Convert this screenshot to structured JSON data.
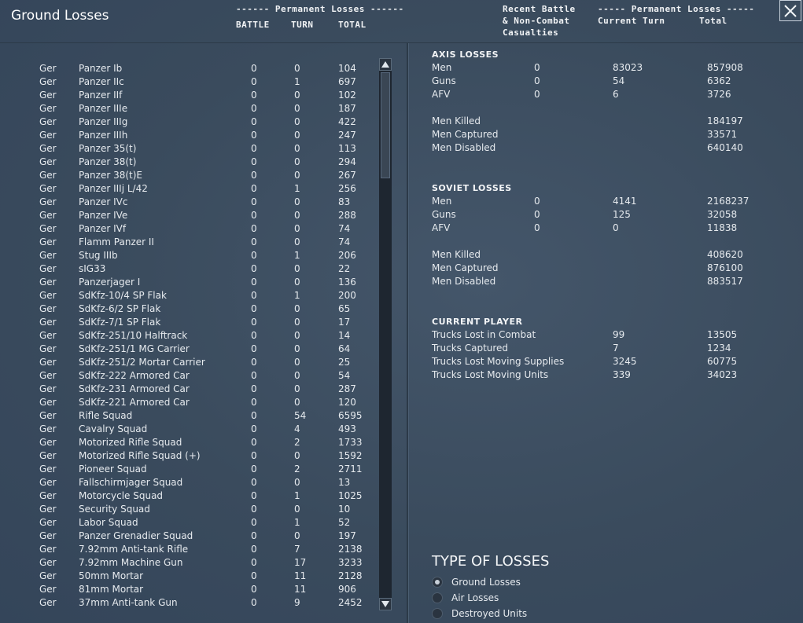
{
  "title": "Ground Losses",
  "left_headers": {
    "group": "------ Permanent Losses ------",
    "battle": "BATTLE",
    "turn": "TURN",
    "total": "TOTAL"
  },
  "right_headers": {
    "recent_1": "Recent Battle",
    "recent_2": "& Non-Combat",
    "recent_3": "Casualties",
    "group": "----- Permanent Losses -----",
    "current_turn": "Current Turn",
    "total": "Total"
  },
  "ground_losses": [
    {
      "nat": "Ger",
      "name": "Panzer Ib",
      "battle": "0",
      "turn": "0",
      "total": "104"
    },
    {
      "nat": "Ger",
      "name": "Panzer IIc",
      "battle": "0",
      "turn": "1",
      "total": "697"
    },
    {
      "nat": "Ger",
      "name": "Panzer IIf",
      "battle": "0",
      "turn": "0",
      "total": "102"
    },
    {
      "nat": "Ger",
      "name": "Panzer IIIe",
      "battle": "0",
      "turn": "0",
      "total": "187"
    },
    {
      "nat": "Ger",
      "name": "Panzer IIIg",
      "battle": "0",
      "turn": "0",
      "total": "422"
    },
    {
      "nat": "Ger",
      "name": "Panzer IIIh",
      "battle": "0",
      "turn": "0",
      "total": "247"
    },
    {
      "nat": "Ger",
      "name": "Panzer 35(t)",
      "battle": "0",
      "turn": "0",
      "total": "113"
    },
    {
      "nat": "Ger",
      "name": "Panzer 38(t)",
      "battle": "0",
      "turn": "0",
      "total": "294"
    },
    {
      "nat": "Ger",
      "name": "Panzer 38(t)E",
      "battle": "0",
      "turn": "0",
      "total": "267"
    },
    {
      "nat": "Ger",
      "name": "Panzer IIIj L/42",
      "battle": "0",
      "turn": "1",
      "total": "256"
    },
    {
      "nat": "Ger",
      "name": "Panzer IVc",
      "battle": "0",
      "turn": "0",
      "total": "83"
    },
    {
      "nat": "Ger",
      "name": "Panzer IVe",
      "battle": "0",
      "turn": "0",
      "total": "288"
    },
    {
      "nat": "Ger",
      "name": "Panzer IVf",
      "battle": "0",
      "turn": "0",
      "total": "74"
    },
    {
      "nat": "Ger",
      "name": "Flamm Panzer II",
      "battle": "0",
      "turn": "0",
      "total": "74"
    },
    {
      "nat": "Ger",
      "name": "Stug IIIb",
      "battle": "0",
      "turn": "1",
      "total": "206"
    },
    {
      "nat": "Ger",
      "name": "sIG33",
      "battle": "0",
      "turn": "0",
      "total": "22"
    },
    {
      "nat": "Ger",
      "name": "Panzerjager I",
      "battle": "0",
      "turn": "0",
      "total": "136"
    },
    {
      "nat": "Ger",
      "name": "SdKfz-10/4 SP Flak",
      "battle": "0",
      "turn": "1",
      "total": "200"
    },
    {
      "nat": "Ger",
      "name": "SdKfz-6/2 SP Flak",
      "battle": "0",
      "turn": "0",
      "total": "65"
    },
    {
      "nat": "Ger",
      "name": "SdKfz-7/1 SP Flak",
      "battle": "0",
      "turn": "0",
      "total": "17"
    },
    {
      "nat": "Ger",
      "name": "SdKfz-251/10 Halftrack",
      "battle": "0",
      "turn": "0",
      "total": "14"
    },
    {
      "nat": "Ger",
      "name": "SdKfz-251/1 MG Carrier",
      "battle": "0",
      "turn": "0",
      "total": "64"
    },
    {
      "nat": "Ger",
      "name": "SdKfz-251/2 Mortar Carrier",
      "battle": "0",
      "turn": "0",
      "total": "25"
    },
    {
      "nat": "Ger",
      "name": "SdKfz-222 Armored Car",
      "battle": "0",
      "turn": "0",
      "total": "54"
    },
    {
      "nat": "Ger",
      "name": "SdKfz-231 Armored Car",
      "battle": "0",
      "turn": "0",
      "total": "287"
    },
    {
      "nat": "Ger",
      "name": "SdKfz-221 Armored Car",
      "battle": "0",
      "turn": "0",
      "total": "120"
    },
    {
      "nat": "Ger",
      "name": "Rifle Squad",
      "battle": "0",
      "turn": "54",
      "total": "6595"
    },
    {
      "nat": "Ger",
      "name": "Cavalry Squad",
      "battle": "0",
      "turn": "4",
      "total": "493"
    },
    {
      "nat": "Ger",
      "name": "Motorized Rifle Squad",
      "battle": "0",
      "turn": "2",
      "total": "1733"
    },
    {
      "nat": "Ger",
      "name": "Motorized Rifle Squad (+)",
      "battle": "0",
      "turn": "0",
      "total": "1592"
    },
    {
      "nat": "Ger",
      "name": "Pioneer Squad",
      "battle": "0",
      "turn": "2",
      "total": "2711"
    },
    {
      "nat": "Ger",
      "name": "Fallschirmjager Squad",
      "battle": "0",
      "turn": "0",
      "total": "13"
    },
    {
      "nat": "Ger",
      "name": "Motorcycle Squad",
      "battle": "0",
      "turn": "1",
      "total": "1025"
    },
    {
      "nat": "Ger",
      "name": "Security Squad",
      "battle": "0",
      "turn": "0",
      "total": "10"
    },
    {
      "nat": "Ger",
      "name": "Labor Squad",
      "battle": "0",
      "turn": "1",
      "total": "52"
    },
    {
      "nat": "Ger",
      "name": "Panzer Grenadier Squad",
      "battle": "0",
      "turn": "0",
      "total": "197"
    },
    {
      "nat": "Ger",
      "name": "7.92mm Anti-tank Rifle",
      "battle": "0",
      "turn": "7",
      "total": "2138"
    },
    {
      "nat": "Ger",
      "name": "7.92mm Machine Gun",
      "battle": "0",
      "turn": "17",
      "total": "3233"
    },
    {
      "nat": "Ger",
      "name": "50mm Mortar",
      "battle": "0",
      "turn": "11",
      "total": "2128"
    },
    {
      "nat": "Ger",
      "name": "81mm Mortar",
      "battle": "0",
      "turn": "11",
      "total": "906"
    },
    {
      "nat": "Ger",
      "name": "37mm Anti-tank Gun",
      "battle": "0",
      "turn": "9",
      "total": "2452"
    }
  ],
  "axis": {
    "title": "AXIS LOSSES",
    "rows": [
      {
        "label": "Men",
        "recent": "0",
        "turn": "83023",
        "total": "857908"
      },
      {
        "label": "Guns",
        "recent": "0",
        "turn": "54",
        "total": "6362"
      },
      {
        "label": "AFV",
        "recent": "0",
        "turn": "6",
        "total": "3726"
      }
    ],
    "details": [
      {
        "label": "Men Killed",
        "total": "184197"
      },
      {
        "label": "Men Captured",
        "total": "33571"
      },
      {
        "label": "Men Disabled",
        "total": "640140"
      }
    ]
  },
  "soviet": {
    "title": "SOVIET LOSSES",
    "rows": [
      {
        "label": "Men",
        "recent": "0",
        "turn": "4141",
        "total": "2168237"
      },
      {
        "label": "Guns",
        "recent": "0",
        "turn": "125",
        "total": "32058"
      },
      {
        "label": "AFV",
        "recent": "0",
        "turn": "0",
        "total": "11838"
      }
    ],
    "details": [
      {
        "label": "Men Killed",
        "total": "408620"
      },
      {
        "label": "Men Captured",
        "total": "876100"
      },
      {
        "label": "Men Disabled",
        "total": "883517"
      }
    ]
  },
  "current_player": {
    "title": "CURRENT PLAYER",
    "rows": [
      {
        "label": "Trucks Lost in Combat",
        "turn": "99",
        "total": "13505"
      },
      {
        "label": "Trucks Captured",
        "turn": "7",
        "total": "1234"
      },
      {
        "label": "Trucks Lost Moving Supplies",
        "turn": "3245",
        "total": "60775"
      },
      {
        "label": "Trucks Lost Moving Units",
        "turn": "339",
        "total": "34023"
      }
    ]
  },
  "type_of_losses": {
    "title": "TYPE OF LOSSES",
    "options": [
      {
        "label": "Ground Losses",
        "selected": true
      },
      {
        "label": "Air Losses",
        "selected": false
      },
      {
        "label": "Destroyed Units",
        "selected": false
      }
    ]
  },
  "icons": {
    "close": "close-icon",
    "scroll_up": "arrow-up-icon",
    "scroll_down": "arrow-down-icon"
  }
}
